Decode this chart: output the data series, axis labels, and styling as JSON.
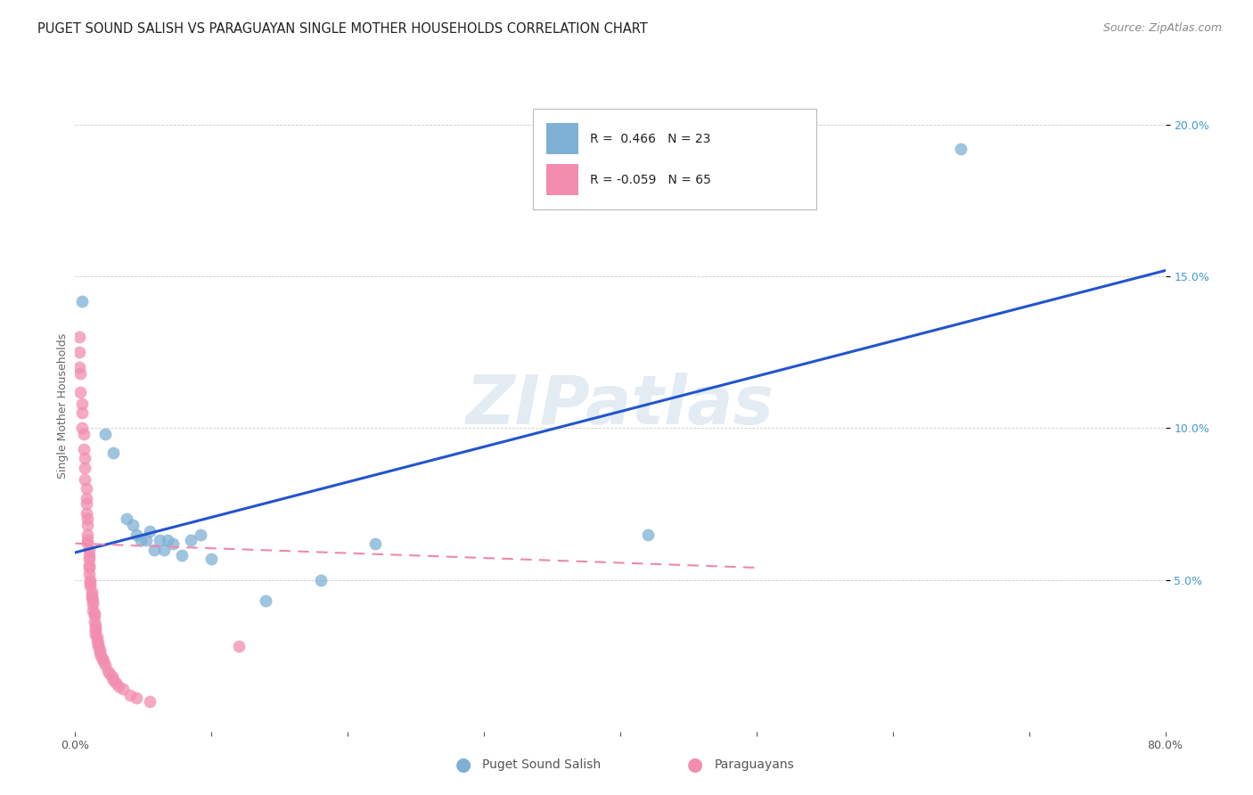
{
  "title": "PUGET SOUND SALISH VS PARAGUAYAN SINGLE MOTHER HOUSEHOLDS CORRELATION CHART",
  "source": "Source: ZipAtlas.com",
  "ylabel": "Single Mother Households",
  "xlim": [
    0.0,
    0.8
  ],
  "ylim": [
    0.0,
    0.215
  ],
  "yticks": [
    0.05,
    0.1,
    0.15,
    0.2
  ],
  "ytick_labels": [
    "5.0%",
    "10.0%",
    "15.0%",
    "20.0%"
  ],
  "xticks": [
    0.0,
    0.1,
    0.2,
    0.3,
    0.4,
    0.5,
    0.6,
    0.7,
    0.8
  ],
  "xtick_labels": [
    "0.0%",
    "",
    "",
    "",
    "",
    "",
    "",
    "",
    "80.0%"
  ],
  "blue_color": "#7eb0d5",
  "pink_color": "#f28db0",
  "line_blue": "#2255cc",
  "line_pink": "#ee88aa",
  "watermark": "ZIPatlas",
  "blue_points_x": [
    0.005,
    0.022,
    0.028,
    0.038,
    0.042,
    0.045,
    0.048,
    0.052,
    0.055,
    0.058,
    0.062,
    0.065,
    0.068,
    0.072,
    0.078,
    0.085,
    0.092,
    0.1,
    0.14,
    0.18,
    0.22,
    0.42,
    0.65
  ],
  "blue_points_y": [
    0.142,
    0.098,
    0.092,
    0.07,
    0.068,
    0.065,
    0.063,
    0.063,
    0.066,
    0.06,
    0.063,
    0.06,
    0.063,
    0.062,
    0.058,
    0.063,
    0.065,
    0.057,
    0.043,
    0.05,
    0.062,
    0.065,
    0.192
  ],
  "pink_points_x": [
    0.003,
    0.003,
    0.003,
    0.004,
    0.004,
    0.005,
    0.005,
    0.005,
    0.006,
    0.006,
    0.007,
    0.007,
    0.007,
    0.008,
    0.008,
    0.008,
    0.008,
    0.009,
    0.009,
    0.009,
    0.009,
    0.009,
    0.01,
    0.01,
    0.01,
    0.01,
    0.01,
    0.01,
    0.011,
    0.011,
    0.011,
    0.012,
    0.012,
    0.012,
    0.013,
    0.013,
    0.013,
    0.014,
    0.014,
    0.014,
    0.015,
    0.015,
    0.015,
    0.015,
    0.016,
    0.016,
    0.017,
    0.017,
    0.018,
    0.018,
    0.019,
    0.02,
    0.021,
    0.022,
    0.024,
    0.025,
    0.027,
    0.028,
    0.03,
    0.032,
    0.035,
    0.04,
    0.045,
    0.055,
    0.12
  ],
  "pink_points_y": [
    0.13,
    0.125,
    0.12,
    0.118,
    0.112,
    0.108,
    0.105,
    0.1,
    0.098,
    0.093,
    0.09,
    0.087,
    0.083,
    0.08,
    0.077,
    0.075,
    0.072,
    0.07,
    0.068,
    0.065,
    0.063,
    0.062,
    0.06,
    0.058,
    0.057,
    0.055,
    0.054,
    0.052,
    0.05,
    0.049,
    0.048,
    0.046,
    0.045,
    0.044,
    0.043,
    0.042,
    0.04,
    0.039,
    0.038,
    0.036,
    0.035,
    0.034,
    0.033,
    0.032,
    0.031,
    0.03,
    0.029,
    0.028,
    0.027,
    0.026,
    0.025,
    0.024,
    0.023,
    0.022,
    0.02,
    0.019,
    0.018,
    0.017,
    0.016,
    0.015,
    0.014,
    0.012,
    0.011,
    0.01,
    0.028
  ],
  "blue_line_x": [
    0.0,
    0.8
  ],
  "blue_line_y": [
    0.059,
    0.152
  ],
  "pink_line_x": [
    0.0,
    0.5
  ],
  "pink_line_y": [
    0.062,
    0.054
  ],
  "background_color": "#ffffff",
  "grid_color": "#cccccc",
  "title_fontsize": 10.5,
  "axis_label_fontsize": 9,
  "tick_fontsize": 9,
  "legend_fontsize": 10,
  "source_fontsize": 9
}
